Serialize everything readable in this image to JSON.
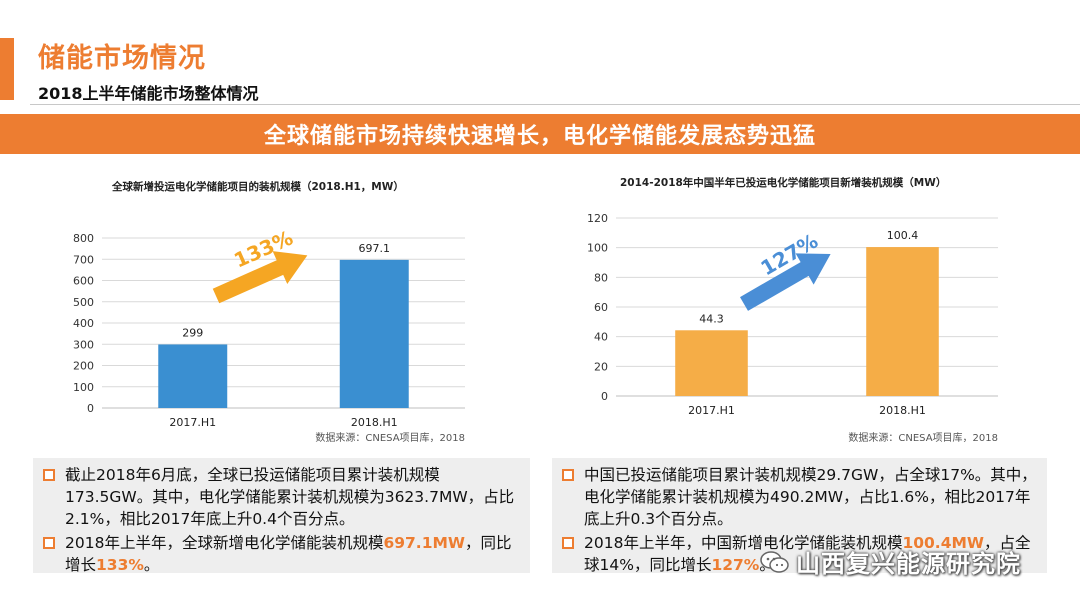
{
  "header": {
    "title": "储能市场情况",
    "subtitle": "2018上半年储能市场整体情况"
  },
  "banner": "全球储能市场持续快速增长，电化学储能发展态势迅猛",
  "colors": {
    "accent": "#ed7d31",
    "bar_blue": "#3a8fd1",
    "bar_orange": "#f5ad47",
    "arrow_blue": "#4a8ed6",
    "arrow_orange": "#f5a623"
  },
  "chart_data": [
    {
      "type": "bar",
      "title": "全球新增投运电化学储能项目的装机规模（2018.H1，MW）",
      "categories": [
        "2017.H1",
        "2018.H1"
      ],
      "values": [
        299,
        697.1
      ],
      "value_labels": [
        "299",
        "697.1"
      ],
      "ylim": [
        0,
        800
      ],
      "yticks": [
        0,
        100,
        200,
        300,
        400,
        500,
        600,
        700,
        800
      ],
      "grid": true,
      "growth_label": "133%",
      "source": "数据来源：CNESA项目库，2018"
    },
    {
      "type": "bar",
      "title": "2014-2018年中国半年已投运电化学储能项目新增装机规模（MW）",
      "categories": [
        "2017.H1",
        "2018.H1"
      ],
      "values": [
        44.3,
        100.4
      ],
      "value_labels": [
        "44.3",
        "100.4"
      ],
      "ylim": [
        0,
        120
      ],
      "yticks": [
        0,
        20,
        40,
        60,
        80,
        100,
        120
      ],
      "grid": true,
      "growth_label": "127%",
      "source": "数据来源：CNESA项目库，2018"
    }
  ],
  "left_bullets": [
    {
      "text": "截止2018年6月底，全球已投运储能项目累计装机规模173.5GW。其中，电化学储能累计装机规模为3623.7MW，占比2.1%，相比2017年底上升0.4个百分点。"
    },
    {
      "pre": "2018年上半年，全球新增电化学储能装机规模",
      "hl1": "697.1MW",
      "mid": "，同比增长",
      "hl2": "133%",
      "post": "。"
    }
  ],
  "right_bullets": [
    {
      "text": "中国已投运储能项目累计装机规模29.7GW，占全球17%。其中，电化学储能累计装机规模为490.2MW，占比1.6%，相比2017年底上升0.3个百分点。"
    },
    {
      "pre": "2018年上半年，中国新增电化学储能装机规模",
      "hl1": "100.4MW",
      "mid": "，占全球14%，同比增长",
      "hl2": "127%",
      "post": "。"
    }
  ],
  "watermark": {
    "icon": "wechat-icon",
    "text": "山西复兴能源研究院"
  }
}
